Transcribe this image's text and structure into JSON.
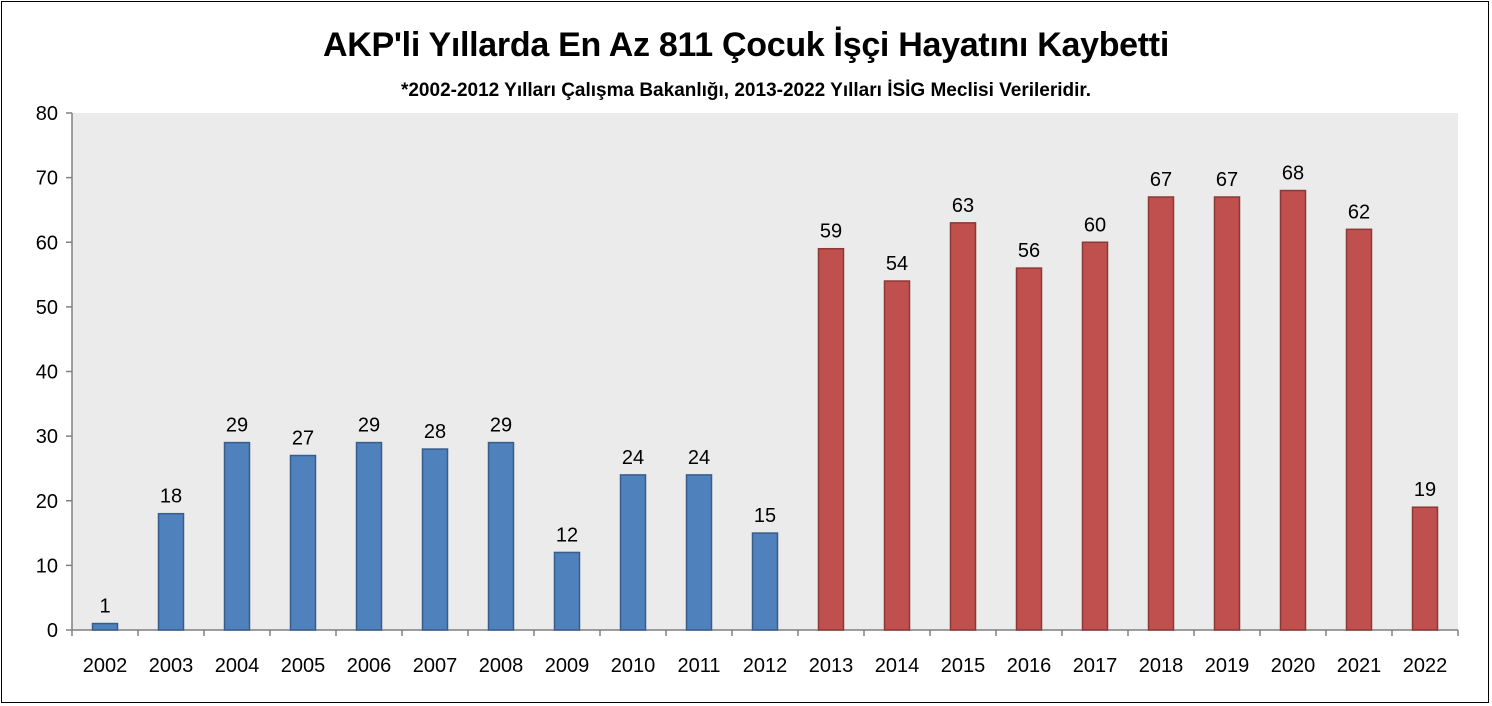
{
  "chart_data": {
    "type": "bar",
    "title": "AKP'li Yıllarda En Az 811 Çocuk İşçi Hayatını Kaybetti",
    "subtitle": "*2002-2012 Yılları Çalışma Bakanlığı, 2013-2022 Yılları İSİG Meclisi Verileridir.",
    "xlabel": "",
    "ylabel": "",
    "ylim": [
      0,
      80
    ],
    "yticks": [
      0,
      10,
      20,
      30,
      40,
      50,
      60,
      70,
      80
    ],
    "grid": false,
    "categories": [
      "2002",
      "2003",
      "2004",
      "2005",
      "2006",
      "2007",
      "2008",
      "2009",
      "2010",
      "2011",
      "2012",
      "2013",
      "2014",
      "2015",
      "2016",
      "2017",
      "2018",
      "2019",
      "2020",
      "2021",
      "2022"
    ],
    "values": [
      1,
      18,
      29,
      27,
      29,
      28,
      29,
      12,
      24,
      24,
      15,
      59,
      54,
      63,
      56,
      60,
      67,
      67,
      68,
      62,
      19
    ],
    "colors": {
      "2002-2012": "#4f81bd",
      "2013-2022": "#c0504d",
      "plot_background": "#ebebeb"
    },
    "data_labels": true
  }
}
